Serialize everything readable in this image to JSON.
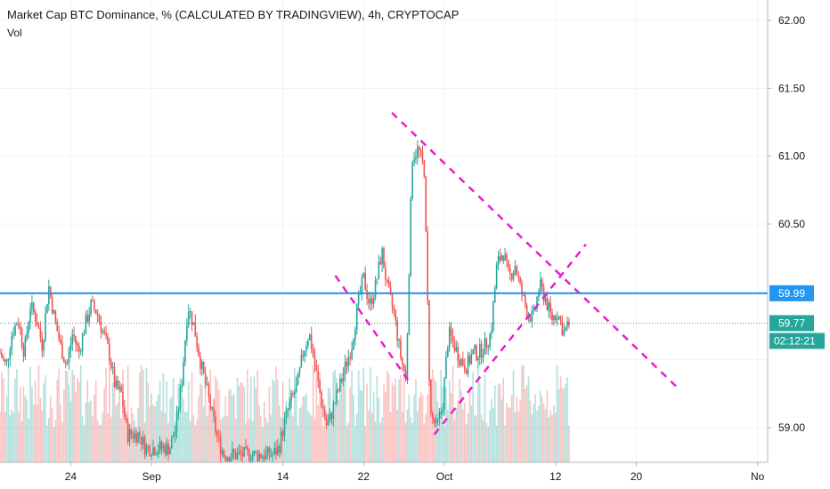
{
  "header": {
    "title": "Market Cap BTC Dominance, % (CALCULATED BY TRADINGVIEW), 4h, CRYPTOCAP",
    "volume_label": "Vol"
  },
  "chart_data": {
    "type": "candlestick",
    "title": "Market Cap BTC Dominance, % (CALCULATED BY TRADINGVIEW), 4h, CRYPTOCAP",
    "ylim": [
      58.8,
      62.2
    ],
    "y_ticks": [
      "62.00",
      "61.50",
      "61.00",
      "60.50",
      "59.00"
    ],
    "x_ticks": [
      {
        "label": "24",
        "x": 24
      },
      {
        "label": "Sep",
        "x": 32
      },
      {
        "label": "14",
        "x": 45
      },
      {
        "label": "22",
        "x": 53
      },
      {
        "label": "Oct",
        "x": 61
      },
      {
        "label": "12",
        "x": 72
      },
      {
        "label": "20",
        "x": 80
      },
      {
        "label": "No",
        "x": 92
      }
    ],
    "x_axis_unit": "day index (Aug 1 = 1)",
    "xlim": [
      17,
      93
    ],
    "horizontal_line": {
      "value": 59.99,
      "color": "#2196f3",
      "label": "59.99"
    },
    "last_price": {
      "value": 59.77,
      "label": "59.77",
      "countdown": "02:12:21"
    },
    "price_path": [
      [
        17.0,
        59.55
      ],
      [
        17.6,
        59.45
      ],
      [
        18.2,
        59.7
      ],
      [
        18.8,
        59.8
      ],
      [
        19.4,
        59.55
      ],
      [
        20.0,
        59.9
      ],
      [
        20.6,
        59.8
      ],
      [
        21.2,
        59.6
      ],
      [
        21.8,
        60.05
      ],
      [
        22.4,
        59.8
      ],
      [
        23.0,
        59.6
      ],
      [
        23.6,
        59.45
      ],
      [
        24.2,
        59.7
      ],
      [
        24.8,
        59.55
      ],
      [
        25.4,
        59.75
      ],
      [
        26.0,
        59.9
      ],
      [
        26.6,
        59.85
      ],
      [
        27.2,
        59.7
      ],
      [
        27.8,
        59.55
      ],
      [
        28.4,
        59.3
      ],
      [
        29.0,
        59.25
      ],
      [
        29.6,
        58.95
      ],
      [
        30.2,
        58.95
      ],
      [
        30.8,
        58.95
      ],
      [
        31.4,
        58.85
      ],
      [
        32.0,
        58.85
      ],
      [
        32.6,
        58.85
      ],
      [
        33.2,
        58.85
      ],
      [
        33.8,
        58.85
      ],
      [
        34.4,
        59.0
      ],
      [
        35.0,
        59.35
      ],
      [
        35.6,
        59.9
      ],
      [
        36.2,
        59.75
      ],
      [
        36.8,
        59.5
      ],
      [
        37.4,
        59.3
      ],
      [
        38.0,
        59.1
      ],
      [
        38.6,
        58.9
      ],
      [
        39.2,
        58.8
      ],
      [
        39.8,
        58.8
      ],
      [
        40.4,
        58.8
      ],
      [
        41.0,
        58.8
      ],
      [
        41.6,
        58.8
      ],
      [
        42.2,
        58.8
      ],
      [
        42.8,
        58.8
      ],
      [
        43.4,
        58.8
      ],
      [
        44.0,
        58.8
      ],
      [
        44.6,
        58.85
      ],
      [
        45.2,
        59.05
      ],
      [
        45.8,
        59.2
      ],
      [
        46.4,
        59.3
      ],
      [
        47.0,
        59.55
      ],
      [
        47.6,
        59.7
      ],
      [
        48.2,
        59.45
      ],
      [
        48.8,
        59.2
      ],
      [
        49.4,
        59.0
      ],
      [
        50.0,
        59.15
      ],
      [
        50.6,
        59.3
      ],
      [
        51.2,
        59.45
      ],
      [
        51.8,
        59.6
      ],
      [
        52.4,
        59.9
      ],
      [
        53.0,
        60.1
      ],
      [
        53.6,
        59.9
      ],
      [
        54.2,
        60.05
      ],
      [
        54.8,
        60.3
      ],
      [
        55.4,
        60.0
      ],
      [
        56.0,
        59.85
      ],
      [
        56.6,
        59.55
      ],
      [
        57.2,
        59.35
      ],
      [
        57.8,
        61.0
      ],
      [
        58.4,
        61.05
      ],
      [
        59.0,
        60.9
      ],
      [
        59.6,
        59.1
      ],
      [
        60.2,
        59.0
      ],
      [
        60.8,
        59.15
      ],
      [
        61.4,
        59.7
      ],
      [
        62.0,
        59.6
      ],
      [
        62.6,
        59.5
      ],
      [
        63.2,
        59.45
      ],
      [
        63.8,
        59.55
      ],
      [
        64.4,
        59.55
      ],
      [
        65.0,
        59.6
      ],
      [
        65.6,
        59.7
      ],
      [
        66.2,
        60.2
      ],
      [
        66.8,
        60.3
      ],
      [
        67.4,
        60.1
      ],
      [
        68.0,
        60.2
      ],
      [
        68.6,
        60.0
      ],
      [
        69.2,
        59.85
      ],
      [
        69.8,
        59.8
      ],
      [
        70.4,
        60.05
      ],
      [
        71.0,
        59.95
      ],
      [
        71.6,
        59.8
      ],
      [
        72.2,
        59.85
      ],
      [
        72.8,
        59.7
      ],
      [
        73.4,
        59.77
      ]
    ],
    "trend_lines": [
      {
        "from": [
          50.2,
          60.12
        ],
        "to": [
          57.4,
          59.35
        ]
      },
      {
        "from": [
          60.0,
          58.95
        ],
        "to": [
          75.0,
          60.35
        ]
      },
      {
        "from": [
          55.8,
          61.32
        ],
        "to": [
          84.0,
          59.3
        ]
      }
    ],
    "colors": {
      "up": "#26a69a",
      "down": "#ef5350",
      "trend": "#e91ecf",
      "hline": "#2196f3"
    }
  }
}
